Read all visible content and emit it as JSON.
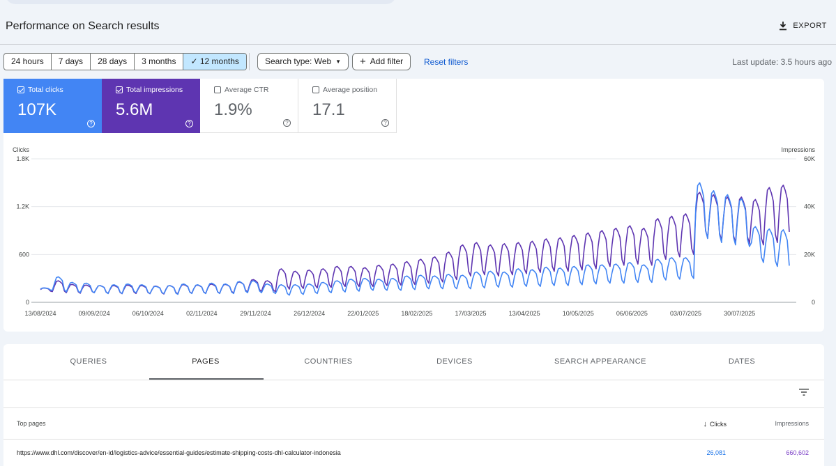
{
  "page": {
    "title": "Performance on Search results",
    "export_label": "EXPORT",
    "last_update": "Last update: 3.5 hours ago"
  },
  "date_ranges": {
    "options": [
      "24 hours",
      "7 days",
      "28 days",
      "3 months",
      "12 months"
    ],
    "selected": "12 months"
  },
  "filters": {
    "search_type": "Search type: Web",
    "add_filter": "Add filter",
    "reset": "Reset filters"
  },
  "metrics": {
    "clicks": {
      "label": "Total clicks",
      "value": "107K",
      "checked": true,
      "color": "#4285f4"
    },
    "impressions": {
      "label": "Total impressions",
      "value": "5.6M",
      "checked": true,
      "color": "#5e35b1"
    },
    "ctr": {
      "label": "Average CTR",
      "value": "1.9%",
      "checked": false
    },
    "position": {
      "label": "Average position",
      "value": "17.1",
      "checked": false
    }
  },
  "chart_data": {
    "type": "line",
    "left_axis": {
      "label": "Clicks",
      "ticks": [
        "1.8K",
        "1.2K",
        "600",
        "0"
      ],
      "ylim": [
        0,
        1800
      ]
    },
    "right_axis": {
      "label": "Impressions",
      "ticks": [
        "60K",
        "40K",
        "20K",
        "0"
      ],
      "ylim": [
        0,
        60000
      ]
    },
    "x_ticks": [
      "13/08/2024",
      "09/09/2024",
      "06/10/2024",
      "02/11/2024",
      "29/11/2024",
      "26/12/2024",
      "22/01/2025",
      "18/02/2025",
      "17/03/2025",
      "13/04/2025",
      "10/05/2025",
      "06/06/2025",
      "03/07/2025",
      "30/07/2025"
    ],
    "grid": true,
    "x_start": "2024-08-13",
    "x_end": "2025-08-24",
    "series": [
      {
        "name": "Clicks",
        "axis": "left",
        "color": "#4285f4",
        "weekly_peak": [
          180,
          320,
          250,
          240,
          210,
          220,
          230,
          220,
          200,
          210,
          230,
          220,
          240,
          230,
          260,
          270,
          230,
          220,
          220,
          230,
          250,
          270,
          290,
          300,
          290,
          300,
          330,
          340,
          330,
          350,
          340,
          380,
          390,
          380,
          420,
          410,
          440,
          430,
          450,
          470,
          470,
          480,
          500,
          470,
          540,
          560,
          560,
          1500,
          1400,
          1350,
          1300,
          950,
          920,
          910,
          900
        ],
        "weekly_low": [
          150,
          130,
          120,
          120,
          110,
          110,
          120,
          110,
          110,
          100,
          110,
          110,
          110,
          110,
          120,
          120,
          110,
          90,
          100,
          110,
          120,
          130,
          140,
          150,
          150,
          150,
          160,
          170,
          170,
          170,
          170,
          180,
          190,
          190,
          200,
          200,
          210,
          210,
          220,
          230,
          240,
          240,
          250,
          250,
          280,
          290,
          300,
          800,
          750,
          720,
          700,
          500,
          450,
          380,
          350
        ]
      },
      {
        "name": "Impressions",
        "axis": "right",
        "color": "#5e35b1",
        "weekly_peak": [
          6000,
          9000,
          7500,
          7200,
          7000,
          7000,
          7200,
          7000,
          6800,
          7000,
          7400,
          7200,
          7600,
          7500,
          8500,
          9500,
          9000,
          14000,
          13000,
          13500,
          14000,
          15000,
          15000,
          14500,
          15500,
          16000,
          17000,
          18000,
          19000,
          21000,
          24000,
          25000,
          24000,
          24500,
          25000,
          25500,
          26500,
          27000,
          28000,
          29000,
          30000,
          31000,
          32000,
          31000,
          35000,
          36000,
          37000,
          46000,
          45000,
          44000,
          44000,
          43000,
          48000,
          49000,
          52000
        ],
        "weekly_low": [
          4500,
          4000,
          3800,
          4000,
          3800,
          3600,
          3700,
          3600,
          3500,
          3600,
          3800,
          3800,
          3800,
          4000,
          4400,
          4600,
          4400,
          5500,
          5800,
          6000,
          6200,
          6600,
          6600,
          6600,
          7000,
          7200,
          7500,
          8000,
          8500,
          9500,
          11000,
          11500,
          11000,
          11500,
          12000,
          12500,
          13000,
          13000,
          13500,
          14000,
          15000,
          15500,
          16000,
          15500,
          18000,
          19000,
          20000,
          27000,
          26000,
          25000,
          24500,
          24000,
          25000,
          26000,
          28000
        ]
      }
    ]
  },
  "tabs": {
    "items": [
      "QUERIES",
      "PAGES",
      "COUNTRIES",
      "DEVICES",
      "SEARCH APPEARANCE",
      "DATES"
    ],
    "active": "PAGES"
  },
  "table": {
    "headers": {
      "page": "Top pages",
      "clicks": "Clicks",
      "impressions": "Impressions"
    },
    "sort_icon": "arrow-down-icon",
    "rows": [
      {
        "url": "https://www.dhl.com/discover/en-id/logistics-advice/essential-guides/estimate-shipping-costs-dhl-calculator-indonesia",
        "clicks": "26,081",
        "impressions": "660,602"
      }
    ]
  }
}
